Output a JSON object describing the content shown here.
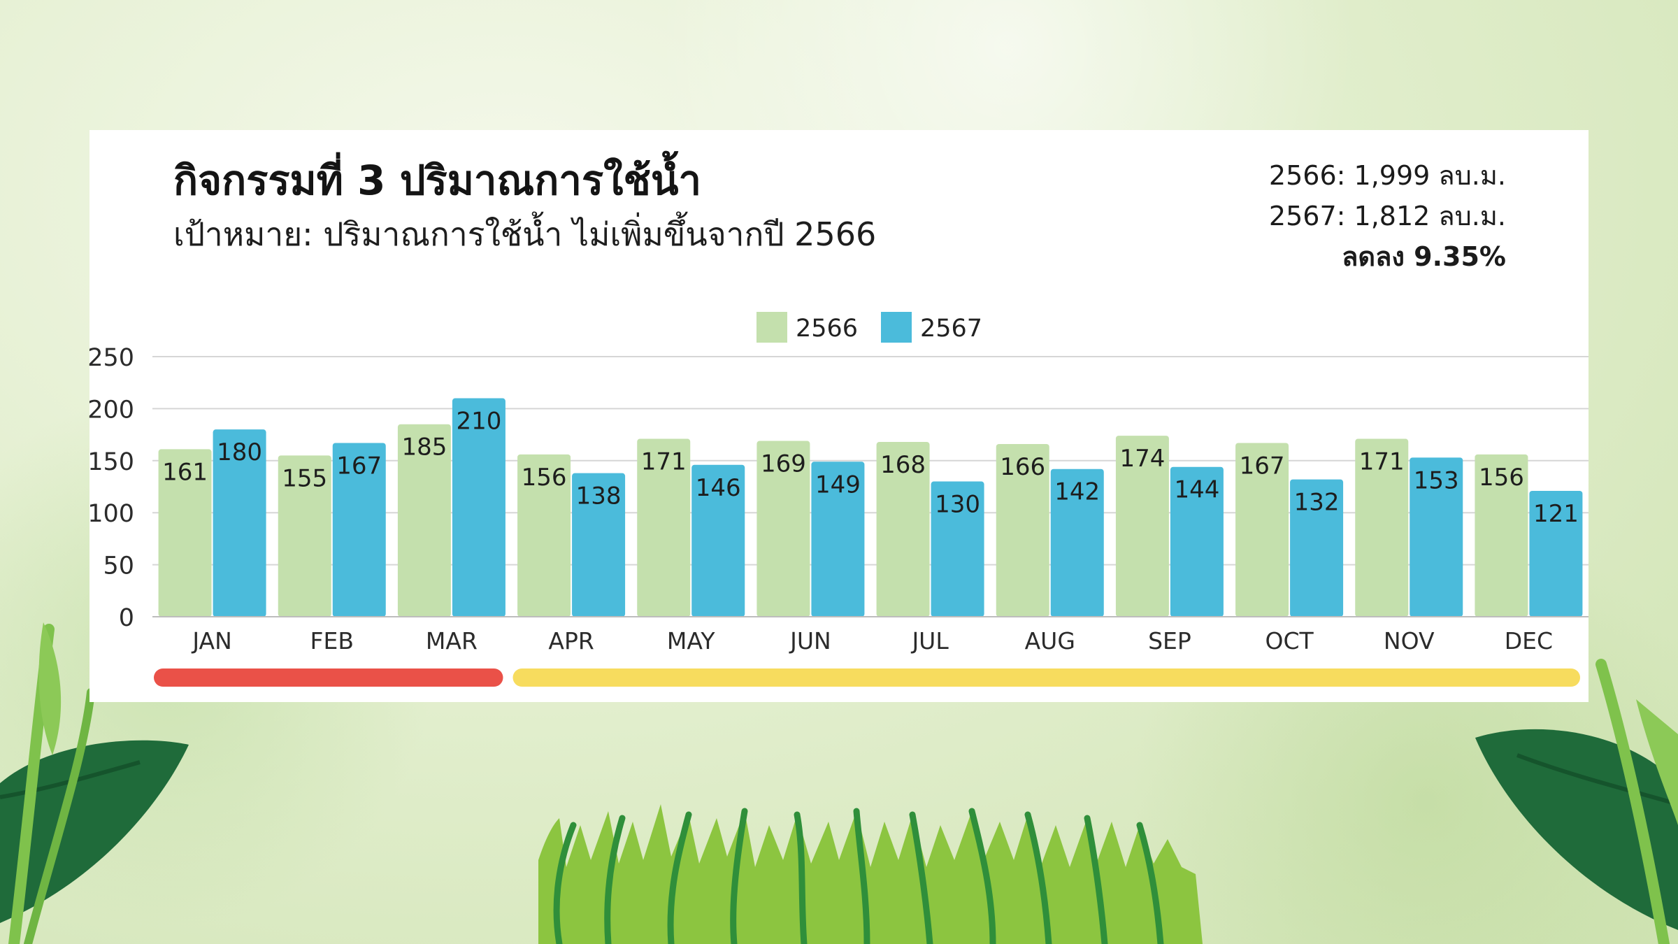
{
  "header": {
    "title": "กิจกรรมที่ 3 ปริมาณการใช้น้ำ",
    "subtitle": "เป้าหมาย: ปริมาณการใช้น้ำ ไม่เพิ่มขึ้นจากปี 2566"
  },
  "summary": {
    "line1": "2566: 1,999 ลบ.ม.",
    "line2": "2567: 1,812 ลบ.ม.",
    "line3": "ลดลง 9.35%"
  },
  "colors": {
    "series_2566": "#c4e0ad",
    "series_2567": "#4bbbdb",
    "band_red": "#ea5148",
    "band_yellow": "#f7dc5e",
    "grid": "#d6d6d6"
  },
  "chart_data": {
    "type": "bar",
    "categories": [
      "JAN",
      "FEB",
      "MAR",
      "APR",
      "MAY",
      "JUN",
      "JUL",
      "AUG",
      "SEP",
      "OCT",
      "NOV",
      "DEC"
    ],
    "series": [
      {
        "name": "2566",
        "values": [
          161,
          155,
          185,
          156,
          171,
          169,
          168,
          166,
          174,
          167,
          171,
          156
        ]
      },
      {
        "name": "2567",
        "values": [
          180,
          167,
          210,
          138,
          146,
          149,
          130,
          142,
          144,
          132,
          153,
          121
        ]
      }
    ],
    "ylim": [
      0,
      250
    ],
    "yticks": [
      0,
      50,
      100,
      150,
      200,
      250
    ],
    "grid": true,
    "legend": "top-center",
    "bands": [
      {
        "from": "JAN",
        "to": "MAR",
        "color": "red"
      },
      {
        "from": "APR",
        "to": "DEC",
        "color": "yellow"
      }
    ]
  }
}
